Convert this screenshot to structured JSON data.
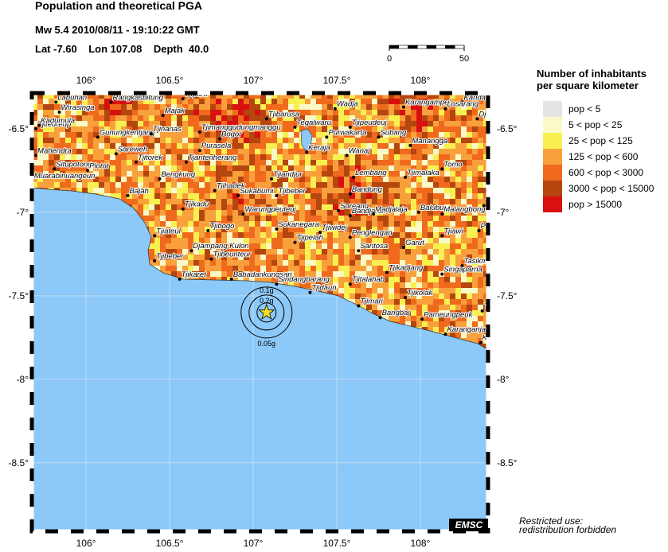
{
  "header": {
    "title": "Population and theoretical PGA",
    "event": "Mw 5.4  2010/08/11 - 19:10:22 GMT",
    "location": "Lat -7.60    Lon 107.08    Depth  40.0"
  },
  "scale_bar": {
    "ticks": [
      0,
      50
    ]
  },
  "map": {
    "xlim": [
      105.676,
      108.405
    ],
    "ylim": [
      -8.91,
      -6.286
    ],
    "xticks": [
      {
        "value": 106,
        "label": "106°"
      },
      {
        "value": 106.5,
        "label": "106.5°"
      },
      {
        "value": 107,
        "label": "107°"
      },
      {
        "value": 107.5,
        "label": "107.5°"
      },
      {
        "value": 108,
        "label": "108°"
      }
    ],
    "yticks": [
      {
        "value": -6.5,
        "label": "-6.5°"
      },
      {
        "value": -7,
        "label": "-7°"
      },
      {
        "value": -7.5,
        "label": "-7.5°"
      },
      {
        "value": -8,
        "label": "-8°"
      },
      {
        "value": -8.5,
        "label": "-8.5°"
      }
    ],
    "epicenter": {
      "lon": 107.08,
      "lat": -7.6
    },
    "pga_labels": [
      "0.05g",
      "0.1g",
      "0.2g"
    ],
    "cities": [
      {
        "name": "Labuhan",
        "lon": 105.82,
        "lat": -6.34
      },
      {
        "name": "Wirasinga",
        "lon": 105.84,
        "lat": -6.4
      },
      {
        "name": "Rangkasbitung",
        "lon": 106.15,
        "lat": -6.34
      },
      {
        "name": "Tjipara",
        "lon": 106.58,
        "lat": -6.32
      },
      {
        "name": "Majak",
        "lon": 106.46,
        "lat": -6.42
      },
      {
        "name": "Tjiteureup",
        "lon": 105.7,
        "lat": -6.5
      },
      {
        "name": "Kadumula",
        "lon": 105.72,
        "lat": -6.48
      },
      {
        "name": "Gunungkentjang",
        "lon": 106.07,
        "lat": -6.55
      },
      {
        "name": "Tjinanas",
        "lon": 106.39,
        "lat": -6.53
      },
      {
        "name": "Tjimanggudungmanggu",
        "lon": 106.68,
        "lat": -6.52
      },
      {
        "name": "Bogor",
        "lon": 106.8,
        "lat": -6.56
      },
      {
        "name": "Tjibarusa",
        "lon": 107.08,
        "lat": -6.44
      },
      {
        "name": "Wadja",
        "lon": 107.49,
        "lat": -6.38
      },
      {
        "name": "Karangampel",
        "lon": 107.9,
        "lat": -6.37
      },
      {
        "name": "Kandangha",
        "lon": 108.25,
        "lat": -6.34
      },
      {
        "name": "Losarang",
        "lon": 108.15,
        "lat": -6.38
      },
      {
        "name": "Djat",
        "lon": 108.34,
        "lat": -6.44
      },
      {
        "name": "Tegalwaru",
        "lon": 107.25,
        "lat": -6.49
      },
      {
        "name": "Tjipeudeuj",
        "lon": 107.58,
        "lat": -6.49
      },
      {
        "name": "Purwakarta",
        "lon": 107.44,
        "lat": -6.55
      },
      {
        "name": "Subang",
        "lon": 107.75,
        "lat": -6.55
      },
      {
        "name": "Manangga",
        "lon": 107.94,
        "lat": -6.6
      },
      {
        "name": "Mahendra",
        "lon": 105.7,
        "lat": -6.66
      },
      {
        "name": "Sareweh",
        "lon": 106.18,
        "lat": -6.65
      },
      {
        "name": "Tjitorek",
        "lon": 106.3,
        "lat": -6.7
      },
      {
        "name": "Purasela",
        "lon": 106.68,
        "lat": -6.63
      },
      {
        "name": "Tjantenherang",
        "lon": 106.6,
        "lat": -6.7
      },
      {
        "name": "Keraja",
        "lon": 107.32,
        "lat": -6.64
      },
      {
        "name": "Wanaj",
        "lon": 107.56,
        "lat": -6.66
      },
      {
        "name": "Situpotong",
        "lon": 105.81,
        "lat": -6.74
      },
      {
        "name": "Plotot",
        "lon": 106.01,
        "lat": -6.75
      },
      {
        "name": "Muarabinuangeun",
        "lon": 105.68,
        "lat": -6.81
      },
      {
        "name": "Bengkung",
        "lon": 106.44,
        "lat": -6.8
      },
      {
        "name": "Lembang",
        "lon": 107.6,
        "lat": -6.79
      },
      {
        "name": "Tjimalaka",
        "lon": 107.91,
        "lat": -6.79
      },
      {
        "name": "Tomo",
        "lon": 108.13,
        "lat": -6.74
      },
      {
        "name": "Tjiandjur",
        "lon": 107.11,
        "lat": -6.8
      },
      {
        "name": "Bajah",
        "lon": 106.25,
        "lat": -6.9
      },
      {
        "name": "Tjihadek",
        "lon": 106.77,
        "lat": -6.87
      },
      {
        "name": "Sukabumi",
        "lon": 106.91,
        "lat": -6.9
      },
      {
        "name": "Tjibeber",
        "lon": 107.14,
        "lat": -6.9
      },
      {
        "name": "Bandung",
        "lon": 107.58,
        "lat": -6.89
      },
      {
        "name": "Tjikadu",
        "lon": 106.58,
        "lat": -6.98
      },
      {
        "name": "Warungpeuteuj",
        "lon": 106.94,
        "lat": -7.01
      },
      {
        "name": "Soreang",
        "lon": 107.51,
        "lat": -6.99
      },
      {
        "name": "Bandjaran",
        "lon": 107.58,
        "lat": -7.02
      },
      {
        "name": "Madjalaja",
        "lon": 107.72,
        "lat": -7.01
      },
      {
        "name": "Balubur",
        "lon": 107.99,
        "lat": -7.0
      },
      {
        "name": "Malangbong",
        "lon": 108.13,
        "lat": -7.01
      },
      {
        "name": "Tela",
        "lon": 108.38,
        "lat": -6.96
      },
      {
        "name": "Tjiateul",
        "lon": 106.41,
        "lat": -7.14
      },
      {
        "name": "Tjibogo",
        "lon": 106.73,
        "lat": -7.11
      },
      {
        "name": "Sukanegara",
        "lon": 107.14,
        "lat": -7.1
      },
      {
        "name": "Tjiwidej",
        "lon": 107.4,
        "lat": -7.12
      },
      {
        "name": "Tjipelah",
        "lon": 107.25,
        "lat": -7.18
      },
      {
        "name": "Penglengan",
        "lon": 107.58,
        "lat": -7.15
      },
      {
        "name": "Santosa",
        "lon": 107.63,
        "lat": -7.23
      },
      {
        "name": "Garut",
        "lon": 107.9,
        "lat": -7.21
      },
      {
        "name": "Tjiawi",
        "lon": 108.13,
        "lat": -7.14
      },
      {
        "name": "Pand",
        "lon": 108.35,
        "lat": -7.11
      },
      {
        "name": "Djampang Kulon",
        "lon": 106.63,
        "lat": -7.23
      },
      {
        "name": "Tjibeunteur",
        "lon": 106.75,
        "lat": -7.28
      },
      {
        "name": "Tjibeber",
        "lon": 106.41,
        "lat": -7.29
      },
      {
        "name": "Tasikma",
        "lon": 108.25,
        "lat": -7.32
      },
      {
        "name": "Singaparna",
        "lon": 108.13,
        "lat": -7.37
      },
      {
        "name": "Tjikadjang",
        "lon": 107.8,
        "lat": -7.36
      },
      {
        "name": "Tjikaret",
        "lon": 106.56,
        "lat": -7.4
      },
      {
        "name": "Babadankungsari",
        "lon": 106.87,
        "lat": -7.4
      },
      {
        "name": "Sindangbarang",
        "lon": 107.14,
        "lat": -7.43
      },
      {
        "name": "Tjidaun",
        "lon": 107.34,
        "lat": -7.48
      },
      {
        "name": "Tjitalahab",
        "lon": 107.58,
        "lat": -7.43
      },
      {
        "name": "Tjimari",
        "lon": 107.63,
        "lat": -7.56
      },
      {
        "name": "Tjikolak",
        "lon": 107.91,
        "lat": -7.51
      },
      {
        "name": "Bangbaj",
        "lon": 107.76,
        "lat": -7.63
      },
      {
        "name": "Pameungpeuk",
        "lon": 108.01,
        "lat": -7.64
      },
      {
        "name": "Tjikato",
        "lon": 108.37,
        "lat": -7.59
      },
      {
        "name": "Karanganjar",
        "lon": 108.15,
        "lat": -7.73
      },
      {
        "name": "Kala",
        "lon": 108.36,
        "lat": -7.78
      }
    ],
    "agency": "EMSC",
    "notice": [
      "Restricted use:",
      "redistribution forbidden"
    ]
  },
  "legend": {
    "title": [
      "Number of inhabitants",
      "per square kilometer"
    ],
    "items": [
      {
        "label": "pop < 5",
        "color": "#e4e4e4"
      },
      {
        "label": "5 < pop < 25",
        "color": "#fafac8"
      },
      {
        "label": "25 < pop < 125",
        "color": "#f8f050"
      },
      {
        "label": "125 < pop < 600",
        "color": "#f8a03c"
      },
      {
        "label": "600 < pop < 3000",
        "color": "#f06a1e"
      },
      {
        "label": "3000 < pop < 15000",
        "color": "#b4460e"
      },
      {
        "label": "pop > 15000",
        "color": "#d81010"
      }
    ]
  }
}
